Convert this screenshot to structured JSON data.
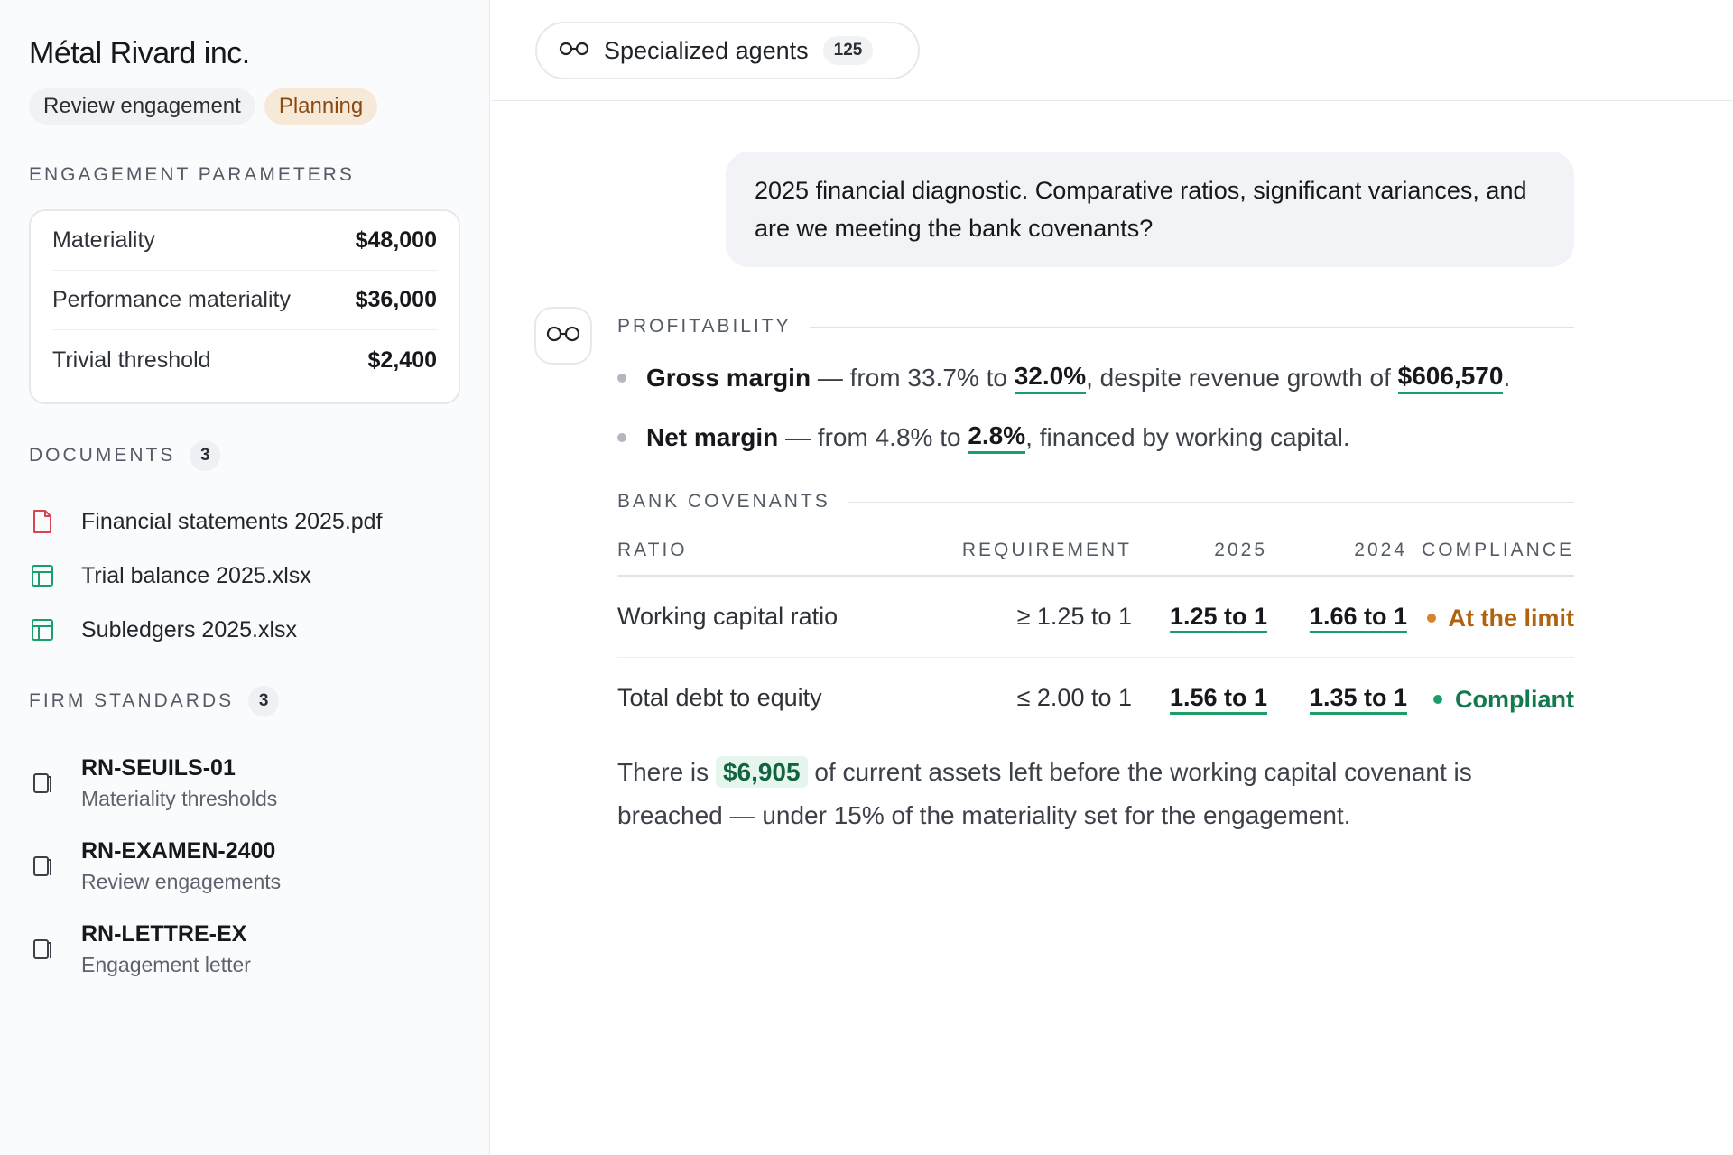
{
  "sidebar": {
    "company": "Métal Rivard inc.",
    "tags": {
      "engagement_type": "Review engagement",
      "phase": "Planning"
    },
    "parameters": {
      "heading": "ENGAGEMENT PARAMETERS",
      "rows": [
        {
          "label": "Materiality",
          "value": "$48,000"
        },
        {
          "label": "Performance materiality",
          "value": "$36,000"
        },
        {
          "label": "Trivial threshold",
          "value": "$2,400"
        }
      ]
    },
    "documents": {
      "heading": "DOCUMENTS",
      "count": "3",
      "items": [
        {
          "name": "Financial statements 2025.pdf",
          "icon": "pdf-file-icon"
        },
        {
          "name": "Trial balance 2025.xlsx",
          "icon": "spreadsheet-icon"
        },
        {
          "name": "Subledgers 2025.xlsx",
          "icon": "spreadsheet-icon"
        }
      ]
    },
    "standards": {
      "heading": "FIRM STANDARDS",
      "count": "3",
      "items": [
        {
          "code": "RN-SEUILS-01",
          "desc": "Materiality thresholds"
        },
        {
          "code": "RN-EXAMEN-2400",
          "desc": "Review engagements"
        },
        {
          "code": "RN-LETTRE-EX",
          "desc": "Engagement letter"
        }
      ]
    }
  },
  "topbar": {
    "agents_label": "Specialized agents",
    "agents_count": "125"
  },
  "chat": {
    "user_message": "2025 financial diagnostic. Comparative ratios, significant variances, and are we meeting the bank covenants?",
    "profitability": {
      "heading": "PROFITABILITY",
      "gross": {
        "label": "Gross margin",
        "t1": " — from 33.7% to ",
        "v1": "32.0%",
        "t2": ", despite revenue growth of ",
        "v2": "$606,570",
        "t3": "."
      },
      "net": {
        "label": "Net margin",
        "t1": " — from 4.8% to ",
        "v1": "2.8%",
        "t2": ", financed by working capital."
      }
    },
    "covenants": {
      "heading": "BANK COVENANTS",
      "columns": {
        "ratio": "RATIO",
        "requirement": "REQUIREMENT",
        "y2025": "2025",
        "y2024": "2024",
        "compliance": "COMPLIANCE"
      },
      "rows": [
        {
          "ratio": "Working capital ratio",
          "requirement": "≥ 1.25 to 1",
          "y2025": "1.25 to 1",
          "y2024": "1.66 to 1",
          "compliance": "At the limit",
          "status_color": "#d9822b"
        },
        {
          "ratio": "Total debt to equity",
          "requirement": "≤ 2.00 to 1",
          "y2025": "1.56 to 1",
          "y2024": "1.35 to 1",
          "compliance": "Compliant",
          "status_color": "#1a9e6a"
        }
      ]
    },
    "conclusion": {
      "t1": "There is ",
      "amount": "$6,905",
      "t2": " of current assets left before the working capital covenant is breached — under 15% of the materiality set for the engagement."
    }
  },
  "colors": {
    "accent_green": "#1a9e6a",
    "warning_orange": "#d9822b",
    "planning_tag_bg": "#f6e9d8"
  }
}
